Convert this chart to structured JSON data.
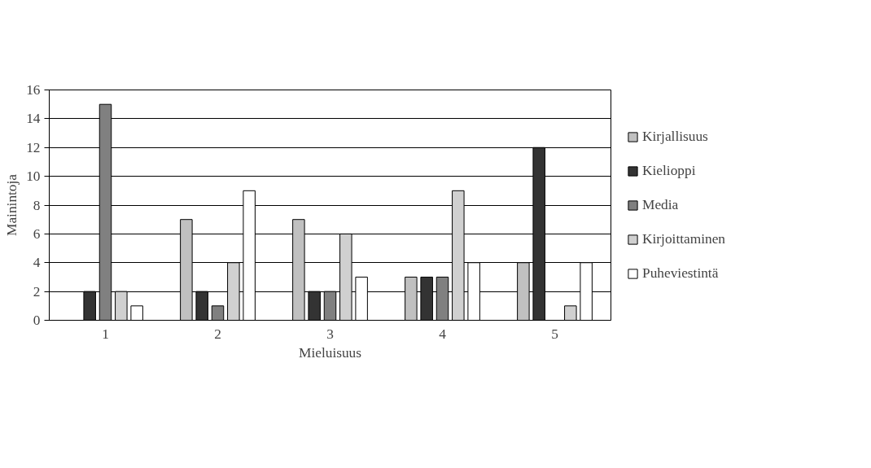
{
  "chart_data": {
    "type": "bar",
    "xlabel": "Mieluisuus",
    "ylabel": "Mainintoja",
    "categories": [
      "1",
      "2",
      "3",
      "4",
      "5"
    ],
    "series": [
      {
        "name": "Kirjallisuus",
        "color": "#c0c0c0",
        "values": [
          null,
          7,
          7,
          3,
          4
        ]
      },
      {
        "name": "Kielioppi",
        "color": "#333333",
        "values": [
          2,
          2,
          2,
          3,
          12
        ]
      },
      {
        "name": "Media",
        "color": "#808080",
        "values": [
          15,
          1,
          2,
          3,
          null
        ]
      },
      {
        "name": "Kirjoittaminen",
        "color": "#d0d0d0",
        "values": [
          2,
          4,
          6,
          9,
          1
        ]
      },
      {
        "name": "Puheviestintä",
        "color": "#ffffff",
        "values": [
          1,
          9,
          3,
          4,
          4
        ]
      }
    ],
    "ylim": [
      0,
      16
    ],
    "yticks": [
      0,
      2,
      4,
      6,
      8,
      10,
      12,
      14,
      16
    ],
    "grid": "y",
    "legend": "right"
  }
}
